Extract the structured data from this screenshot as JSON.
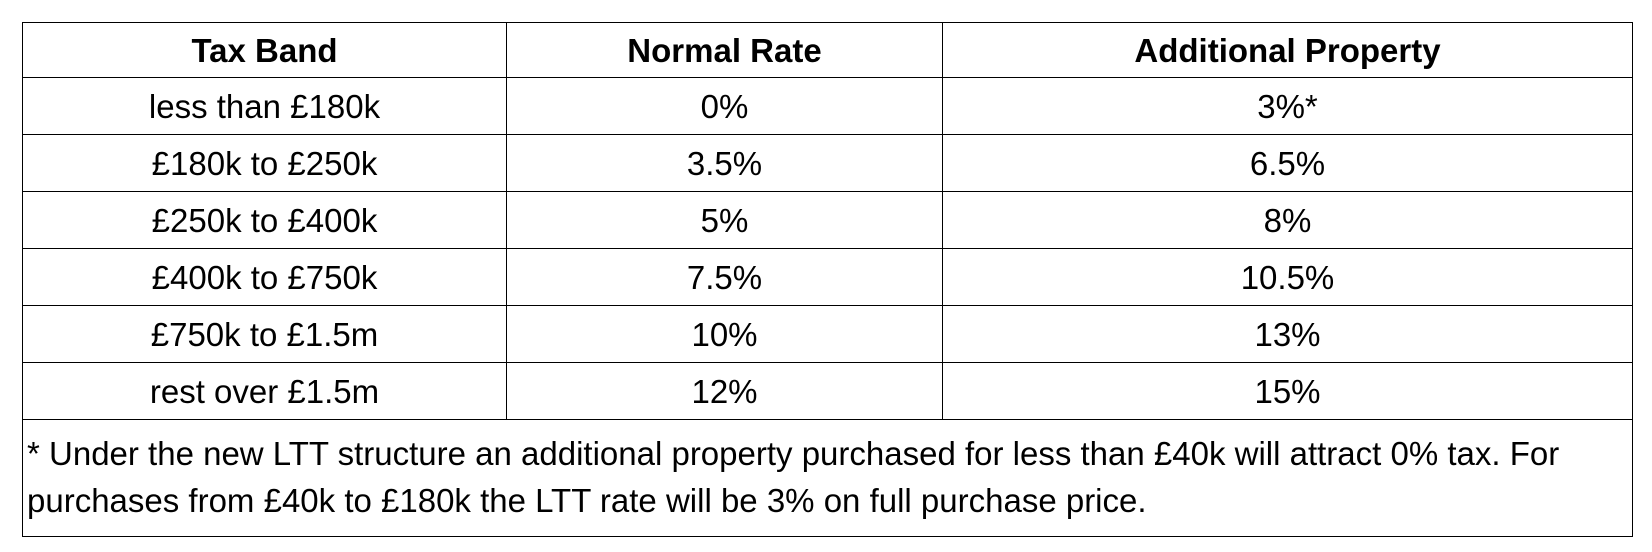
{
  "table": {
    "headers": [
      "Tax Band",
      "Normal Rate",
      "Additional Property"
    ],
    "rows": [
      [
        "less than £180k",
        "0%",
        "3%*"
      ],
      [
        "£180k to £250k",
        "3.5%",
        "6.5%"
      ],
      [
        "£250k to £400k",
        "5%",
        "8%"
      ],
      [
        "£400k to £750k",
        "7.5%",
        "10.5%"
      ],
      [
        "£750k to £1.5m",
        "10%",
        "13%"
      ],
      [
        "rest over £1.5m",
        "12%",
        "15%"
      ]
    ],
    "footnote": "* Under the new LTT structure an additional property purchased for less than £40k will attract 0% tax. For purchases from £40k to £180k the LTT rate will be 3% on full purchase price."
  }
}
